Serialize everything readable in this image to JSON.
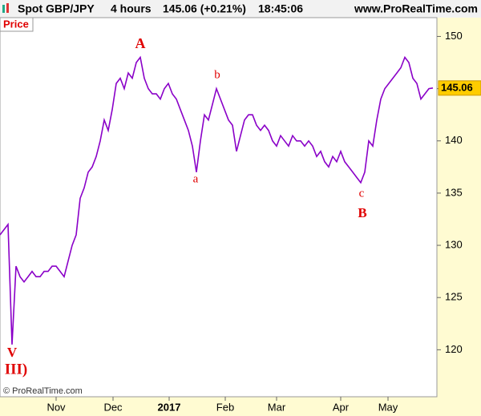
{
  "header": {
    "instrument": "Spot GBP/JPY",
    "period": "4 hours",
    "quote": "145.06 (+0.21%)",
    "time": "18:45:06",
    "site": "www.ProRealTime.com"
  },
  "chart_data": {
    "type": "line",
    "panel_label": "Price",
    "footer": "© ProRealTime.com",
    "series": [
      {
        "name": "Spot GBP/JPY",
        "color": "#8a00c8",
        "values": [
          131,
          131.5,
          132,
          120.5,
          128,
          127,
          126.5,
          127,
          127.5,
          127,
          127,
          127.5,
          127.5,
          128,
          128,
          127.5,
          127,
          128.5,
          130,
          131,
          134.5,
          135.5,
          137,
          137.5,
          138.5,
          140,
          142,
          141,
          143,
          145.5,
          146,
          145,
          146.5,
          146,
          147.5,
          148,
          146,
          145,
          144.5,
          144.5,
          144,
          145,
          145.5,
          144.5,
          144,
          143,
          142,
          141,
          139.5,
          137,
          140,
          142.5,
          142,
          143.5,
          145,
          144,
          143,
          142,
          141.5,
          139,
          140.5,
          142,
          142.5,
          142.5,
          141.5,
          141,
          141.5,
          141,
          140,
          139.5,
          140.5,
          140,
          139.5,
          140.5,
          140,
          140,
          139.5,
          140,
          139.5,
          138.5,
          139,
          138,
          137.5,
          138.5,
          138,
          139,
          138,
          137.5,
          137,
          136.5,
          136,
          137,
          140,
          139.5,
          142,
          144,
          145,
          145.5,
          146,
          146.5,
          147,
          148,
          147.5,
          146,
          145.5,
          144,
          144.5,
          145,
          145.06
        ]
      }
    ],
    "last_price": 145.06,
    "xlim": [
      0,
      109
    ],
    "xticks": [
      {
        "value": 14,
        "label": "Nov"
      },
      {
        "value": 28.2,
        "label": "Dec"
      },
      {
        "value": 42.2,
        "label": "2017"
      },
      {
        "value": 56.2,
        "label": "Feb"
      },
      {
        "value": 69,
        "label": "Mar"
      },
      {
        "value": 85,
        "label": "Apr"
      },
      {
        "value": 96.8,
        "label": "May"
      }
    ],
    "ylim": [
      115.5,
      151.8
    ],
    "yticks": [
      120,
      125,
      130,
      135,
      140,
      145,
      150
    ],
    "annotations": [
      "A",
      "a",
      "b",
      "c",
      "B",
      "V",
      "III)"
    ]
  }
}
